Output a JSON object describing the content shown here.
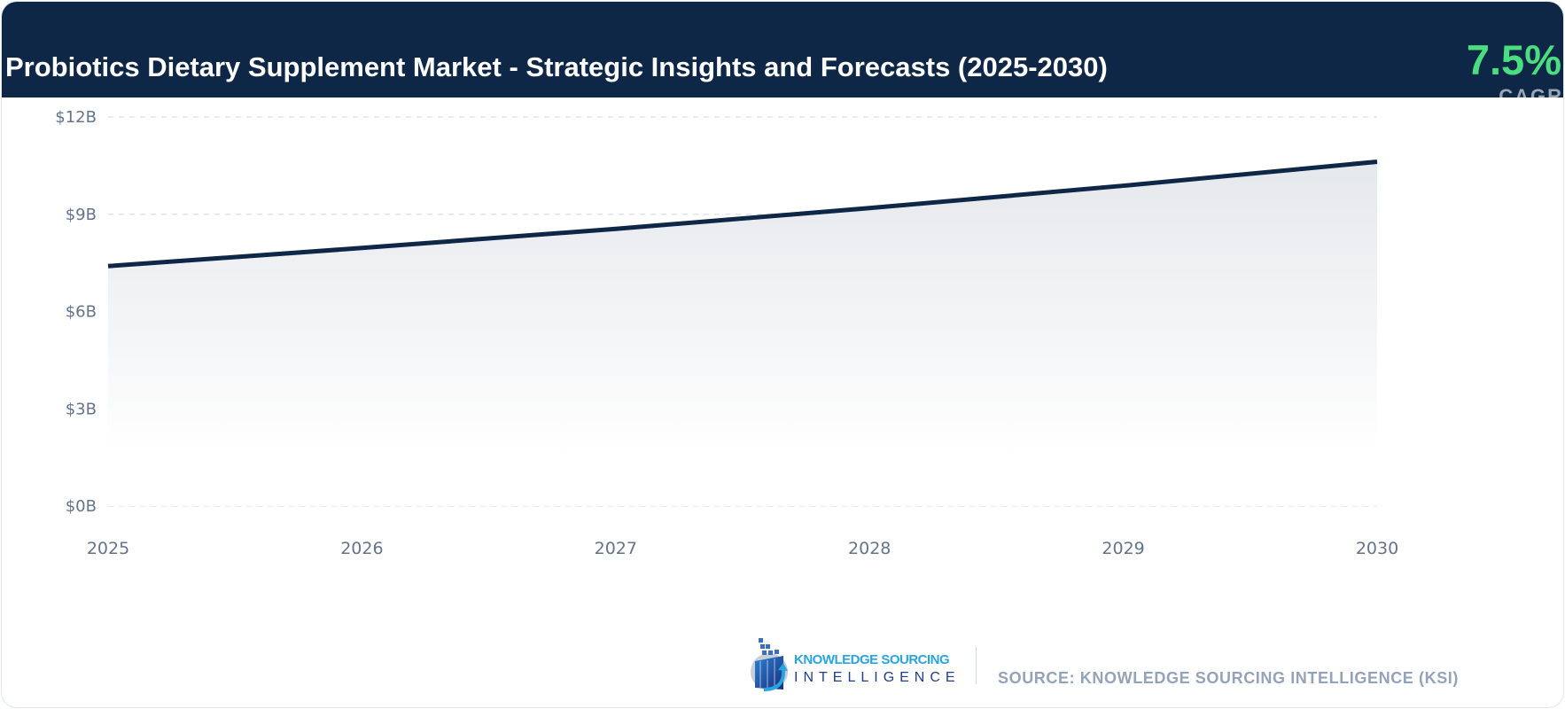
{
  "header": {
    "title": "Probiotics Dietary Supplement Market - Strategic Insights and Forecasts (2025-2030)",
    "cagr_value": "7.5%",
    "cagr_label": "CAGR"
  },
  "colors": {
    "header_bg": "#0e2746",
    "line": "#0e2746",
    "cagr": "#4ade80",
    "fill_top": "#e5e8ec"
  },
  "chart_data": {
    "type": "area",
    "title": "Probiotics Dietary Supplement Market - Strategic Insights and Forecasts (2025-2030)",
    "x": [
      "2025",
      "2026",
      "2027",
      "2028",
      "2029",
      "2030"
    ],
    "series": [
      {
        "values": [
          7.4,
          7.96,
          8.55,
          9.19,
          9.88,
          10.62
        ]
      }
    ],
    "unit": "USD billion",
    "ylim": [
      0,
      12
    ],
    "yticks": [
      0,
      3,
      6,
      9,
      12
    ],
    "ytick_labels": [
      "$0B",
      "$3B",
      "$6B",
      "$9B",
      "$12B"
    ],
    "grid": "horizontal dashed",
    "legend": "none"
  },
  "footer": {
    "logo_line1": "KNOWLEDGE SOURCING",
    "logo_line2": "INTELLIGENCE",
    "source": "SOURCE: KNOWLEDGE SOURCING INTELLIGENCE (KSI)"
  }
}
